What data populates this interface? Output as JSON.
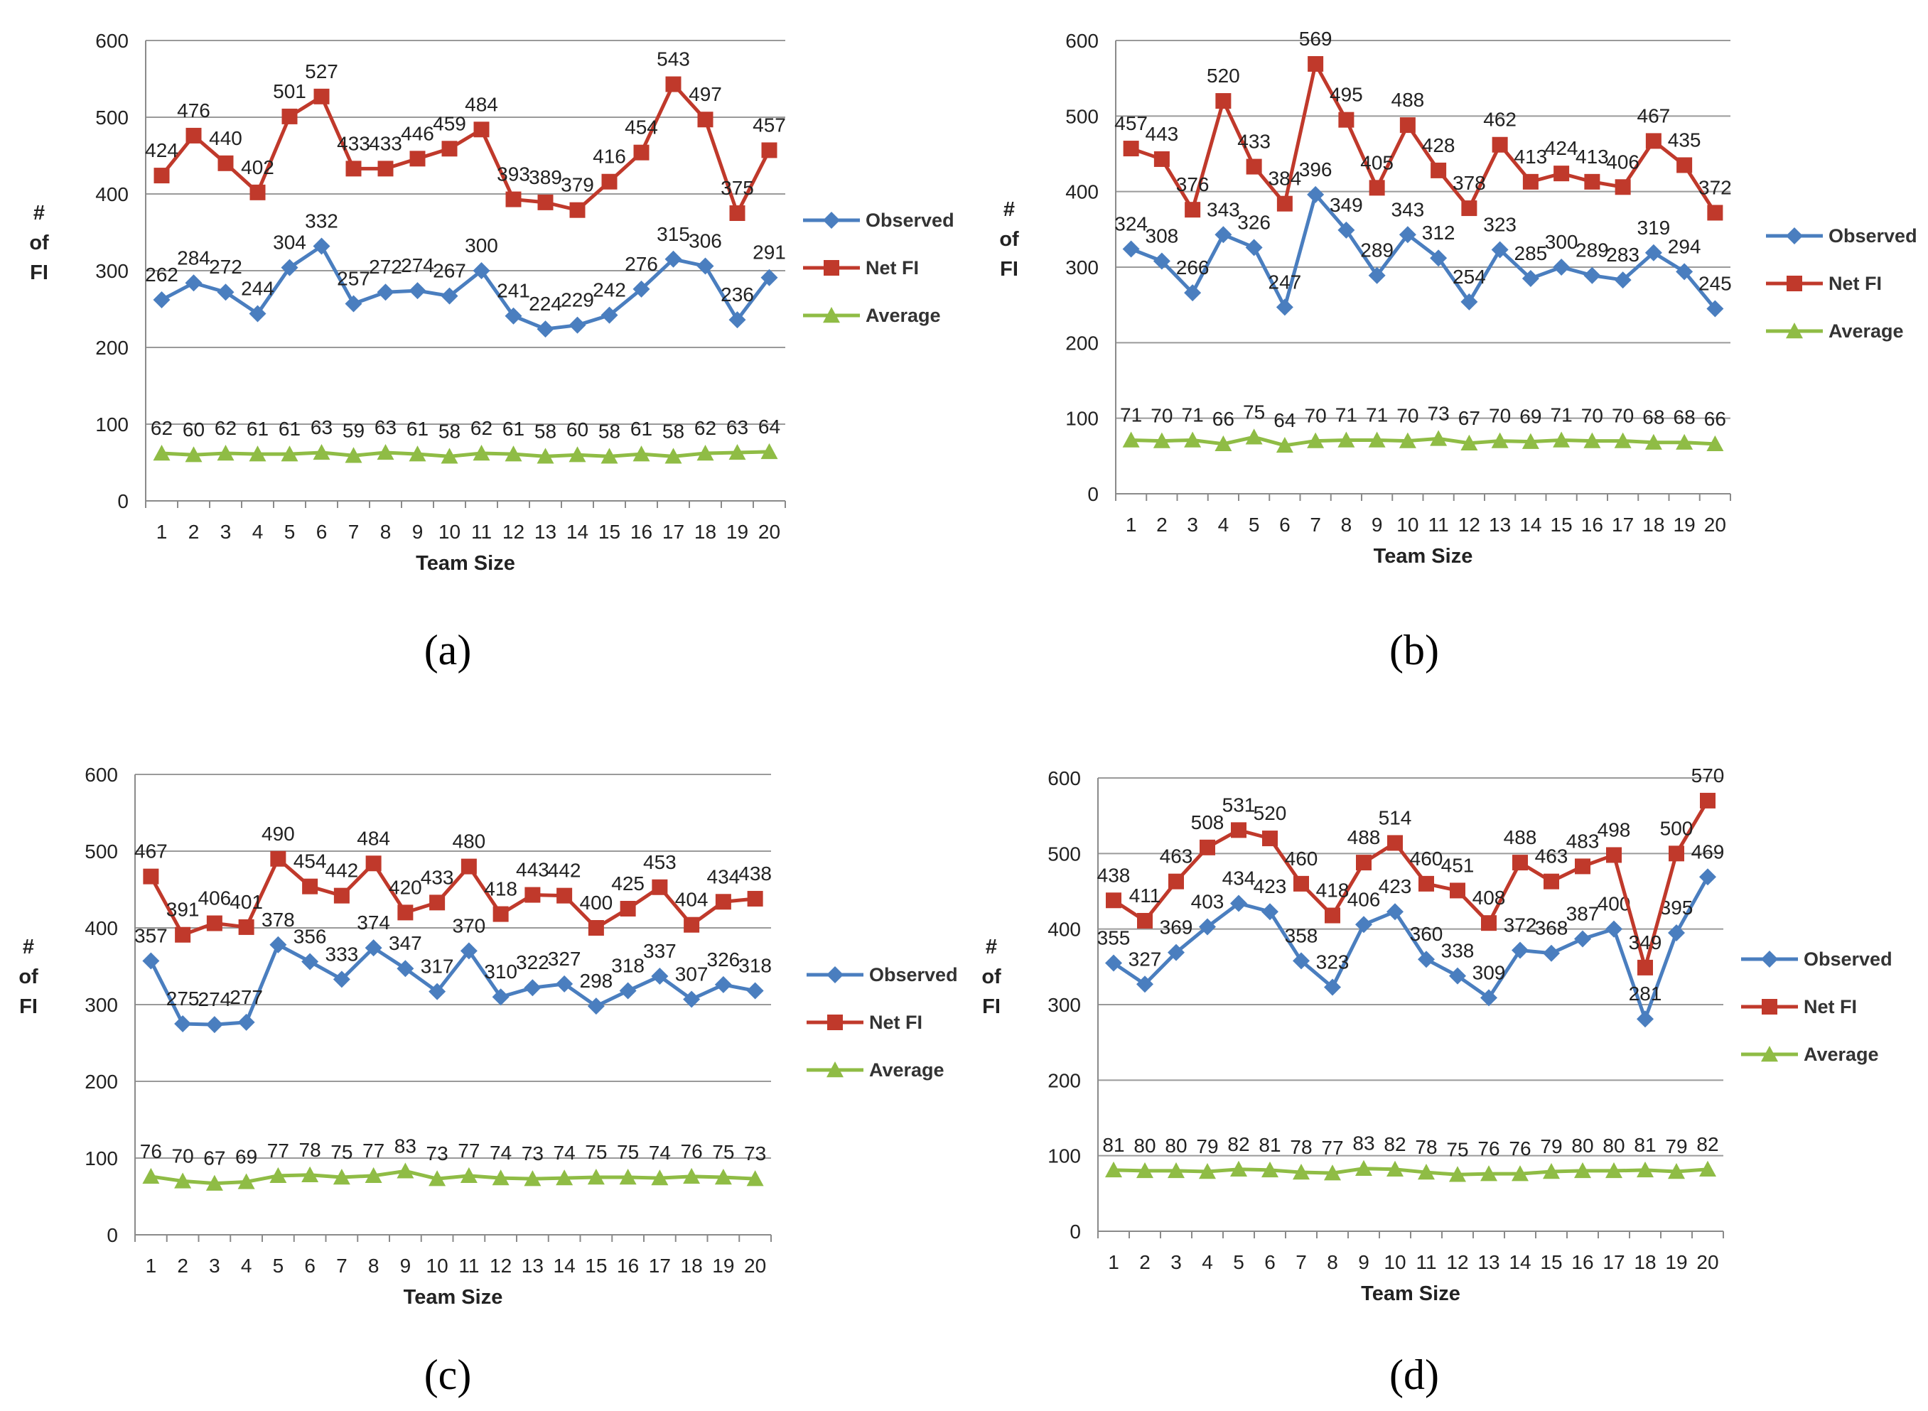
{
  "figure": {
    "colors": {
      "observed": "#4a7ebf",
      "netfi": "#c0392b",
      "average": "#8fbc45",
      "grid": "#9a9a9a",
      "axis": "#8a8a8a"
    }
  },
  "chart_data": [
    {
      "panel": "(a)",
      "type": "line",
      "xlabel": "Team Size",
      "ylabel": "# of FI",
      "ylim": [
        0,
        600
      ],
      "yticks": [
        0,
        100,
        200,
        300,
        400,
        500,
        600
      ],
      "x": [
        1,
        2,
        3,
        4,
        5,
        6,
        7,
        8,
        9,
        10,
        11,
        12,
        13,
        14,
        15,
        16,
        17,
        18,
        19,
        20
      ],
      "grid": true,
      "legend_position": "right",
      "series": [
        {
          "name": "Observed",
          "marker": "diamond",
          "values": [
            262,
            284,
            272,
            244,
            304,
            332,
            257,
            272,
            274,
            267,
            300,
            241,
            224,
            229,
            242,
            276,
            315,
            306,
            236,
            291
          ]
        },
        {
          "name": "Net FI",
          "marker": "square",
          "values": [
            424,
            476,
            440,
            402,
            501,
            527,
            433,
            433,
            446,
            459,
            484,
            393,
            389,
            379,
            416,
            454,
            543,
            497,
            375,
            457
          ]
        },
        {
          "name": "Average",
          "marker": "triangle",
          "values": [
            62,
            60,
            62,
            61,
            61,
            63,
            59,
            63,
            61,
            58,
            62,
            61,
            58,
            60,
            58,
            61,
            58,
            62,
            63,
            64
          ]
        }
      ]
    },
    {
      "panel": "(b)",
      "type": "line",
      "xlabel": "Team Size",
      "ylabel": "# of FI",
      "ylim": [
        0,
        600
      ],
      "yticks": [
        0,
        100,
        200,
        300,
        400,
        500,
        600
      ],
      "x": [
        1,
        2,
        3,
        4,
        5,
        6,
        7,
        8,
        9,
        10,
        11,
        12,
        13,
        14,
        15,
        16,
        17,
        18,
        19,
        20
      ],
      "grid": true,
      "legend_position": "right",
      "series": [
        {
          "name": "Observed",
          "marker": "diamond",
          "values": [
            324,
            308,
            266,
            343,
            326,
            247,
            396,
            349,
            289,
            343,
            312,
            254,
            323,
            285,
            300,
            289,
            283,
            319,
            294,
            245
          ]
        },
        {
          "name": "Net FI",
          "marker": "square",
          "values": [
            457,
            443,
            376,
            520,
            433,
            384,
            569,
            495,
            405,
            488,
            428,
            378,
            462,
            413,
            424,
            413,
            406,
            467,
            435,
            372
          ]
        },
        {
          "name": "Average",
          "marker": "triangle",
          "values": [
            71,
            70,
            71,
            66,
            75,
            64,
            70,
            71,
            71,
            70,
            73,
            67,
            70,
            69,
            71,
            70,
            70,
            68,
            68,
            66
          ]
        }
      ]
    },
    {
      "panel": "(c)",
      "type": "line",
      "xlabel": "Team Size",
      "ylabel": "# of FI",
      "ylim": [
        0,
        600
      ],
      "yticks": [
        0,
        100,
        200,
        300,
        400,
        500,
        600
      ],
      "x": [
        1,
        2,
        3,
        4,
        5,
        6,
        7,
        8,
        9,
        10,
        11,
        12,
        13,
        14,
        15,
        16,
        17,
        18,
        19,
        20
      ],
      "grid": true,
      "legend_position": "right",
      "series": [
        {
          "name": "Observed",
          "marker": "diamond",
          "values": [
            357,
            275,
            274,
            277,
            378,
            356,
            333,
            374,
            347,
            317,
            370,
            310,
            322,
            327,
            298,
            318,
            337,
            307,
            326,
            318
          ]
        },
        {
          "name": "Net FI",
          "marker": "square",
          "values": [
            467,
            391,
            406,
            401,
            490,
            454,
            442,
            484,
            420,
            433,
            480,
            418,
            443,
            442,
            400,
            425,
            453,
            404,
            434,
            438
          ]
        },
        {
          "name": "Average",
          "marker": "triangle",
          "values": [
            76,
            70,
            67,
            69,
            77,
            78,
            75,
            77,
            83,
            73,
            77,
            74,
            73,
            74,
            75,
            75,
            74,
            76,
            75,
            73
          ]
        }
      ]
    },
    {
      "panel": "(d)",
      "type": "line",
      "xlabel": "Team Size",
      "ylabel": "# of FI",
      "ylim": [
        0,
        600
      ],
      "yticks": [
        0,
        100,
        200,
        300,
        400,
        500,
        600
      ],
      "x": [
        1,
        2,
        3,
        4,
        5,
        6,
        7,
        8,
        9,
        10,
        11,
        12,
        13,
        14,
        15,
        16,
        17,
        18,
        19,
        20
      ],
      "grid": true,
      "legend_position": "right",
      "series": [
        {
          "name": "Observed",
          "marker": "diamond",
          "values": [
            355,
            327,
            369,
            403,
            434,
            423,
            358,
            323,
            406,
            423,
            360,
            338,
            309,
            372,
            368,
            387,
            400,
            281,
            395,
            469
          ]
        },
        {
          "name": "Net FI",
          "marker": "square",
          "values": [
            438,
            411,
            463,
            508,
            531,
            520,
            460,
            418,
            488,
            514,
            460,
            451,
            408,
            488,
            463,
            483,
            498,
            349,
            500,
            570
          ]
        },
        {
          "name": "Average",
          "marker": "triangle",
          "values": [
            81,
            80,
            80,
            79,
            82,
            81,
            78,
            77,
            83,
            82,
            78,
            75,
            76,
            76,
            79,
            80,
            80,
            81,
            79,
            82
          ]
        }
      ]
    }
  ]
}
